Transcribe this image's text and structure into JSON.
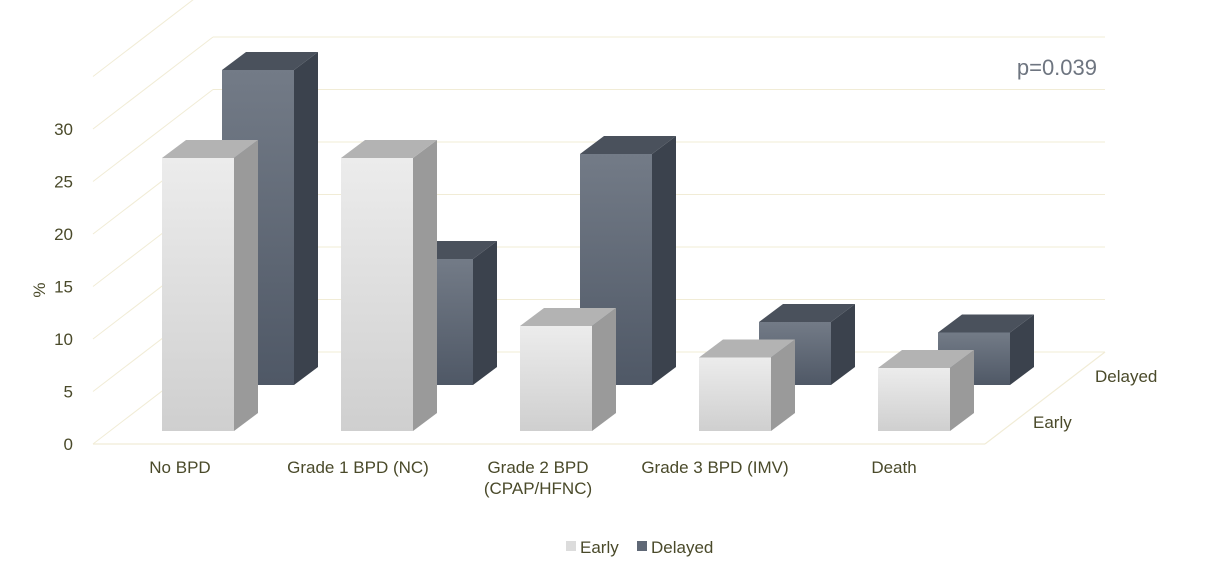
{
  "chart_data": {
    "type": "bar",
    "style": "3d-clustered",
    "categories": [
      "No BPD",
      "Grade 1 BPD (NC)",
      "Grade 2 BPD (CPAP/HFNC)",
      "Grade 3 BPD (IMV)",
      "Death"
    ],
    "category_lines": [
      [
        "No BPD"
      ],
      [
        "Grade 1 BPD (NC)"
      ],
      [
        "Grade 2 BPD",
        "(CPAP/HFNC)"
      ],
      [
        "Grade 3 BPD (IMV)"
      ],
      [
        "Death"
      ]
    ],
    "series": [
      {
        "name": "Early",
        "values": [
          26,
          26,
          10,
          7,
          6
        ],
        "color": "#dcdcdc"
      },
      {
        "name": "Delayed",
        "values": [
          30,
          12,
          22,
          6,
          5
        ],
        "color": "#5f6876"
      }
    ],
    "depth_labels": [
      "Early",
      "Delayed"
    ],
    "ylabel": "%",
    "yticks": [
      0,
      5,
      10,
      15,
      20,
      25,
      30
    ],
    "ylim": [
      0,
      35
    ],
    "grid": true,
    "annotation": "p=0.039",
    "legend": {
      "position": "bottom",
      "items": [
        "Early",
        "Delayed"
      ]
    }
  }
}
